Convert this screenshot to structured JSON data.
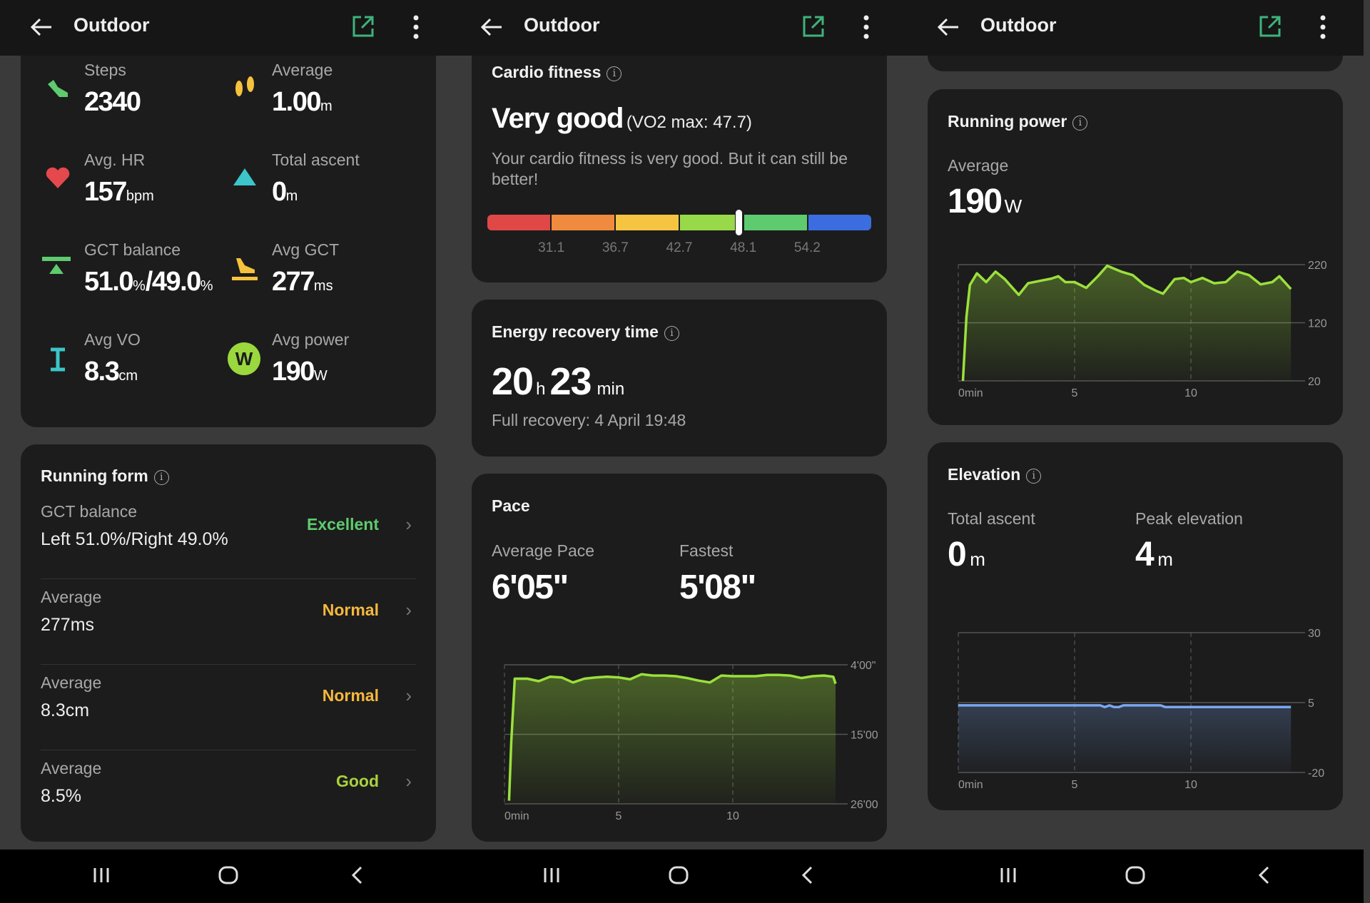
{
  "header": {
    "title": "Outdoor",
    "back_icon": "arrow-left-icon",
    "share_icon": "share-external-icon",
    "more_icon": "more-vertical-icon",
    "accent": "#3fb37a"
  },
  "nav": {
    "recent": "recent-apps-icon",
    "home": "home-icon",
    "back": "back-chevron-icon"
  },
  "summary": {
    "items": [
      {
        "label": "Steps",
        "value": "2340",
        "unit": "",
        "icon": "running-shoe-icon",
        "color": "#5ecb6e"
      },
      {
        "label": "Average",
        "value": "1.00",
        "unit": "m",
        "icon": "footprints-icon",
        "color": "#f5c23d"
      },
      {
        "label": "Avg. HR",
        "value": "157",
        "unit": "bpm",
        "icon": "heart-icon",
        "color": "#e5484d"
      },
      {
        "label": "Total ascent",
        "value": "0",
        "unit": "m",
        "icon": "triangle-icon",
        "color": "#3cc6c9"
      },
      {
        "label": "GCT balance",
        "value": "51.0",
        "unit": "%",
        "value2": "/49.0",
        "unit2": "%",
        "icon": "balance-icon",
        "color": "#5ecb6e"
      },
      {
        "label": "Avg GCT",
        "value": "277",
        "unit": "ms",
        "icon": "shoe-ground-icon",
        "color": "#f5c23d"
      },
      {
        "label": "Avg VO",
        "value": "8.3",
        "unit": "cm",
        "icon": "vertical-oscillation-icon",
        "color": "#3cc6c9"
      },
      {
        "label": "Avg power",
        "value": "190",
        "unit": "W",
        "icon": "power-w-icon",
        "icon_text": "W",
        "color": "#9ad83d"
      }
    ]
  },
  "running_form": {
    "title": "Running form",
    "rows": [
      {
        "label": "GCT balance",
        "value": "Left 51.0%/Right 49.0%",
        "status": "Excellent",
        "color": "#5ecb6e"
      },
      {
        "label": "Average",
        "value": "277ms",
        "status": "Normal",
        "color": "#f5b83d"
      },
      {
        "label": "Average",
        "value": "8.3cm",
        "status": "Normal",
        "color": "#f5b83d"
      },
      {
        "label": "Average",
        "value": "8.5%",
        "status": "Good",
        "color": "#a9d13f"
      }
    ]
  },
  "cardio": {
    "title": "Cardio fitness",
    "rating": "Very good",
    "vo2": "(VO2 max: 47.7)",
    "vo2_value": 47.7,
    "description": "Your cardio fitness is very good. But it can still be better!",
    "thresholds": [
      "31.1",
      "36.7",
      "42.7",
      "48.1",
      "54.2"
    ],
    "segment_colors": [
      "#e04848",
      "#ef8a3e",
      "#f5c542",
      "#98d94a",
      "#5ecb6e",
      "#3b6de0"
    ]
  },
  "recovery": {
    "title": "Energy recovery time",
    "hours": "20",
    "h_unit": "h",
    "minutes": "23",
    "m_unit": "min",
    "full": "Full recovery: 4 April 19:48"
  },
  "pace": {
    "title": "Pace",
    "avg_label": "Average Pace",
    "avg_value": "6'05\"",
    "fastest_label": "Fastest",
    "fastest_value": "5'08\""
  },
  "power": {
    "title": "Running power",
    "avg_label": "Average",
    "value": "190",
    "unit": "W"
  },
  "elevation": {
    "title": "Elevation",
    "ascent_label": "Total ascent",
    "ascent_value": "0",
    "ascent_unit": "m",
    "peak_label": "Peak elevation",
    "peak_value": "4",
    "peak_unit": "m"
  },
  "chart_data": [
    {
      "id": "pace",
      "type": "area",
      "ylabel_unit": "min/km",
      "y_inverted": true,
      "ylim": [
        4,
        26
      ],
      "yticks": [
        {
          "v": 4,
          "label": "4'00\""
        },
        {
          "v": 15,
          "label": "15'00"
        },
        {
          "v": 26,
          "label": "26'00"
        }
      ],
      "xticks": [
        {
          "v": 0,
          "label": "0min"
        },
        {
          "v": 5,
          "label": "5"
        },
        {
          "v": 10,
          "label": "10"
        }
      ],
      "color": "#9be03c",
      "x": [
        0.2,
        0.3,
        0.45,
        1.0,
        1.5,
        2.0,
        2.5,
        3.0,
        3.5,
        4.0,
        4.5,
        5.0,
        5.5,
        6.0,
        6.5,
        7.0,
        7.5,
        8.0,
        8.5,
        9.0,
        9.5,
        10.0,
        10.5,
        11.0,
        11.5,
        12.0,
        12.5,
        13.0,
        13.5,
        14.0,
        14.4,
        14.5
      ],
      "y": [
        25.5,
        16.0,
        6.2,
        6.2,
        6.6,
        5.9,
        6.0,
        6.8,
        6.2,
        6.0,
        5.9,
        6.0,
        6.3,
        5.5,
        5.7,
        5.7,
        5.8,
        6.1,
        6.5,
        6.8,
        5.7,
        5.8,
        5.8,
        5.8,
        5.6,
        5.6,
        5.7,
        6.1,
        5.8,
        5.7,
        5.9,
        7.0
      ]
    },
    {
      "id": "power",
      "type": "area",
      "ylim": [
        20,
        220
      ],
      "yticks": [
        {
          "v": 20,
          "label": "20"
        },
        {
          "v": 120,
          "label": "120"
        },
        {
          "v": 220,
          "label": "220"
        }
      ],
      "xticks": [
        {
          "v": 0,
          "label": "0min"
        },
        {
          "v": 5,
          "label": "5"
        },
        {
          "v": 10,
          "label": "10"
        }
      ],
      "color": "#9be03c",
      "x": [
        0.2,
        0.35,
        0.5,
        0.8,
        1.2,
        1.6,
        2.0,
        2.6,
        3.0,
        3.5,
        4.0,
        4.3,
        4.6,
        5.0,
        5.5,
        6.0,
        6.4,
        7.0,
        7.5,
        8.0,
        8.5,
        8.8,
        9.3,
        9.7,
        10.0,
        10.5,
        11.0,
        11.5,
        12.0,
        12.5,
        13.0,
        13.5,
        13.8,
        14.3
      ],
      "y": [
        20,
        130,
        185,
        205,
        190,
        208,
        195,
        168,
        188,
        192,
        196,
        200,
        190,
        190,
        180,
        200,
        218,
        208,
        202,
        185,
        175,
        170,
        195,
        197,
        190,
        197,
        188,
        190,
        208,
        202,
        186,
        190,
        200,
        178
      ]
    },
    {
      "id": "elevation",
      "type": "area",
      "ylim": [
        -20,
        30
      ],
      "yticks": [
        {
          "v": 30,
          "label": "30"
        },
        {
          "v": 5,
          "label": "5"
        },
        {
          "v": -20,
          "label": "-20"
        }
      ],
      "xticks": [
        {
          "v": 0,
          "label": "0min"
        },
        {
          "v": 5,
          "label": "5"
        },
        {
          "v": 10,
          "label": "10"
        }
      ],
      "color": "#7aa6f0",
      "x": [
        0,
        6.1,
        6.3,
        6.5,
        6.7,
        6.9,
        7.1,
        8.7,
        8.9,
        14.3
      ],
      "y": [
        4.0,
        4.0,
        3.4,
        4.0,
        3.4,
        3.4,
        4.0,
        4.0,
        3.4,
        3.4
      ]
    }
  ]
}
